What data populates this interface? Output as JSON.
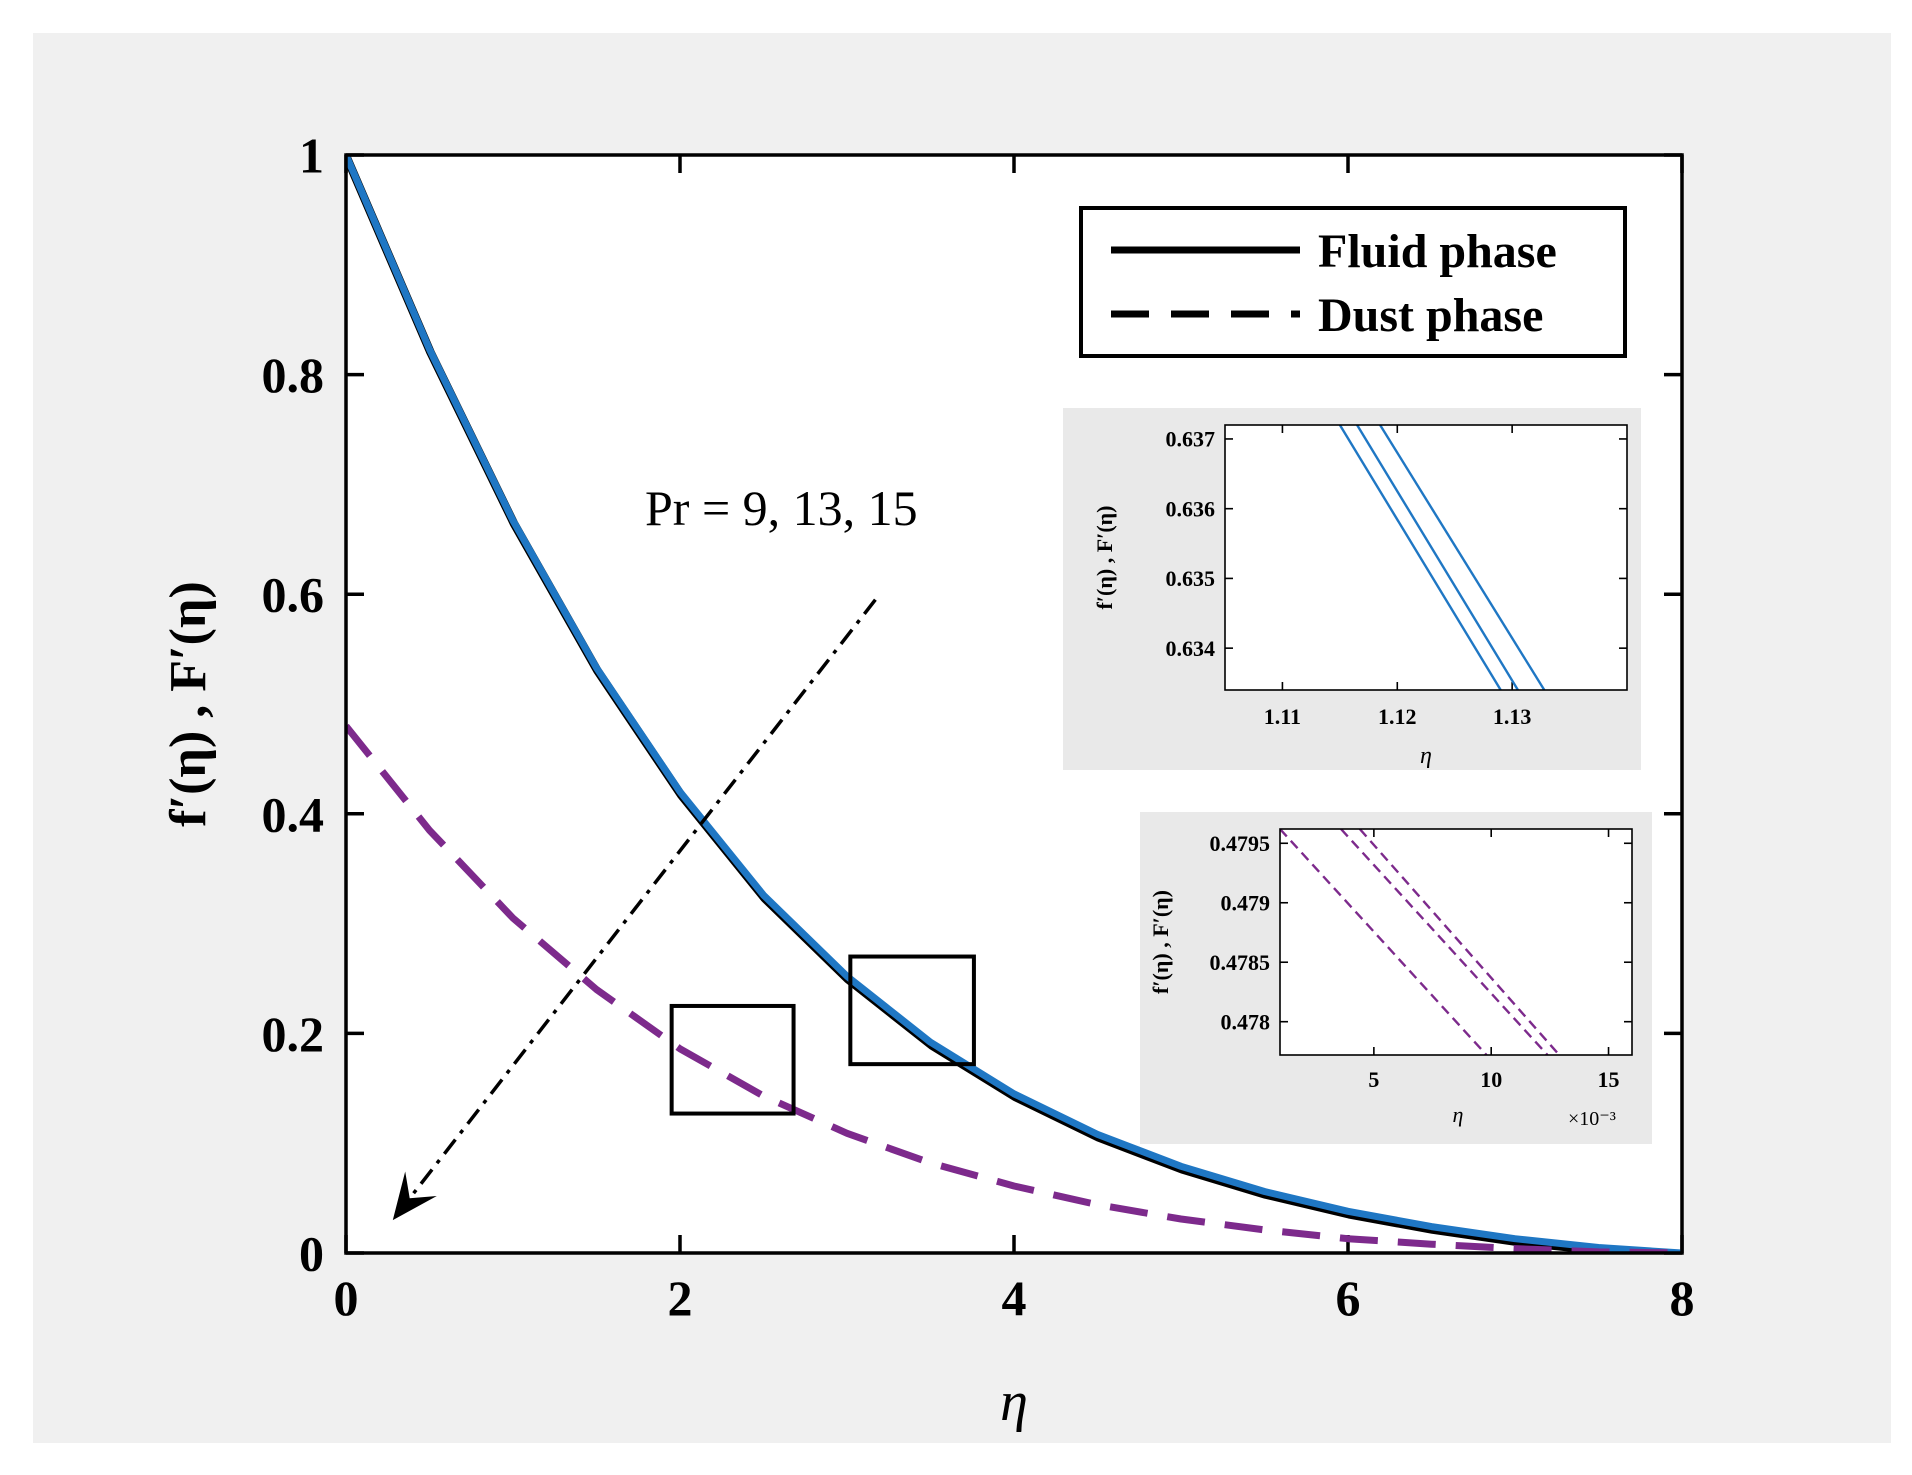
{
  "chart_data": [
    {
      "type": "line",
      "xlabel": "η",
      "ylabel": "f′(η) , F′(η)",
      "xlim": [
        0,
        8
      ],
      "ylim": [
        0,
        1
      ],
      "xticks": [
        0,
        2,
        4,
        6,
        8
      ],
      "yticks": [
        0,
        0.2,
        0.4,
        0.6,
        0.8,
        1
      ],
      "xtick_labels": [
        "0",
        "2",
        "4",
        "6",
        "8"
      ],
      "ytick_labels": [
        "0",
        "0.2",
        "0.4",
        "0.6",
        "0.8",
        "1"
      ],
      "grid": false,
      "legend_position": "top-right",
      "legend": [
        {
          "label": "Fluid phase",
          "style": "solid"
        },
        {
          "label": "Dust phase",
          "style": "dashed"
        }
      ],
      "annotation": "Pr = 9,  13,  15",
      "colors": {
        "fluid": "#1f77c4",
        "fluid_shadow": "#000000",
        "dust": "#7d2a8c",
        "arrow": "#000000",
        "background": "#f0f0f0"
      },
      "series": [
        {
          "phase": "fluid",
          "style": "solid",
          "x": [
            0,
            0.5,
            1,
            1.5,
            2,
            2.5,
            3,
            3.5,
            4,
            4.5,
            5,
            5.5,
            6,
            6.5,
            7,
            7.5,
            8
          ],
          "values": [
            1.0,
            0.823,
            0.667,
            0.533,
            0.42,
            0.326,
            0.252,
            0.192,
            0.145,
            0.108,
            0.079,
            0.056,
            0.038,
            0.024,
            0.013,
            0.005,
            0.0
          ]
        },
        {
          "phase": "dust",
          "style": "dashed",
          "x": [
            0,
            0.5,
            1,
            1.5,
            2,
            2.5,
            3,
            3.5,
            4,
            4.5,
            5,
            5.5,
            6,
            6.5,
            7,
            7.5,
            8
          ],
          "values": [
            0.48,
            0.385,
            0.305,
            0.24,
            0.186,
            0.143,
            0.109,
            0.082,
            0.061,
            0.044,
            0.031,
            0.021,
            0.013,
            0.008,
            0.004,
            0.001,
            0.0
          ]
        }
      ],
      "zoom_boxes": [
        {
          "x": [
            1.95,
            2.68
          ],
          "y": [
            0.127,
            0.225
          ]
        },
        {
          "x": [
            3.02,
            3.76
          ],
          "y": [
            0.172,
            0.27
          ]
        }
      ],
      "arrow": {
        "from": [
          3.17,
          0.595
        ],
        "to": [
          0.28,
          0.03
        ]
      }
    },
    {
      "type": "line",
      "inset": "fluid",
      "xlabel": "η",
      "ylabel": "f′(η) , F′(η)",
      "xlim": [
        1.105,
        1.14
      ],
      "ylim": [
        0.6334,
        0.6372
      ],
      "xticks": [
        1.11,
        1.12,
        1.13
      ],
      "yticks": [
        0.634,
        0.635,
        0.636,
        0.637
      ],
      "xtick_labels": [
        "1.11",
        "1.12",
        "1.13"
      ],
      "ytick_labels": [
        "0.634",
        "0.635",
        "0.636",
        "0.637"
      ],
      "series": [
        {
          "style": "solid",
          "x": [
            1.115,
            1.129
          ],
          "values": [
            0.6372,
            0.6334
          ]
        },
        {
          "style": "solid",
          "x": [
            1.1165,
            1.1305
          ],
          "values": [
            0.6372,
            0.6334
          ]
        },
        {
          "style": "solid",
          "x": [
            1.1185,
            1.1328
          ],
          "values": [
            0.6372,
            0.6334
          ]
        }
      ]
    },
    {
      "type": "line",
      "inset": "dust",
      "xlabel": "η",
      "ylabel": "f′(η) , F′(η)",
      "x_multiplier": "×10⁻³",
      "xlim": [
        0.001,
        0.016
      ],
      "ylim": [
        0.47772,
        0.47962
      ],
      "xticks": [
        0.005,
        0.01,
        0.015
      ],
      "yticks": [
        0.478,
        0.4785,
        0.479,
        0.4795
      ],
      "xtick_labels": [
        "5",
        "10",
        "15"
      ],
      "ytick_labels": [
        "0.478",
        "0.4785",
        "0.479",
        "0.4795"
      ],
      "series": [
        {
          "style": "dashed",
          "x": [
            0.001,
            0.0098
          ],
          "values": [
            0.47962,
            0.47772
          ]
        },
        {
          "style": "dashed",
          "x": [
            0.0036,
            0.0124
          ],
          "values": [
            0.47962,
            0.47772
          ]
        },
        {
          "style": "dashed",
          "x": [
            0.0044,
            0.0129
          ],
          "values": [
            0.47962,
            0.47772
          ]
        }
      ]
    }
  ]
}
